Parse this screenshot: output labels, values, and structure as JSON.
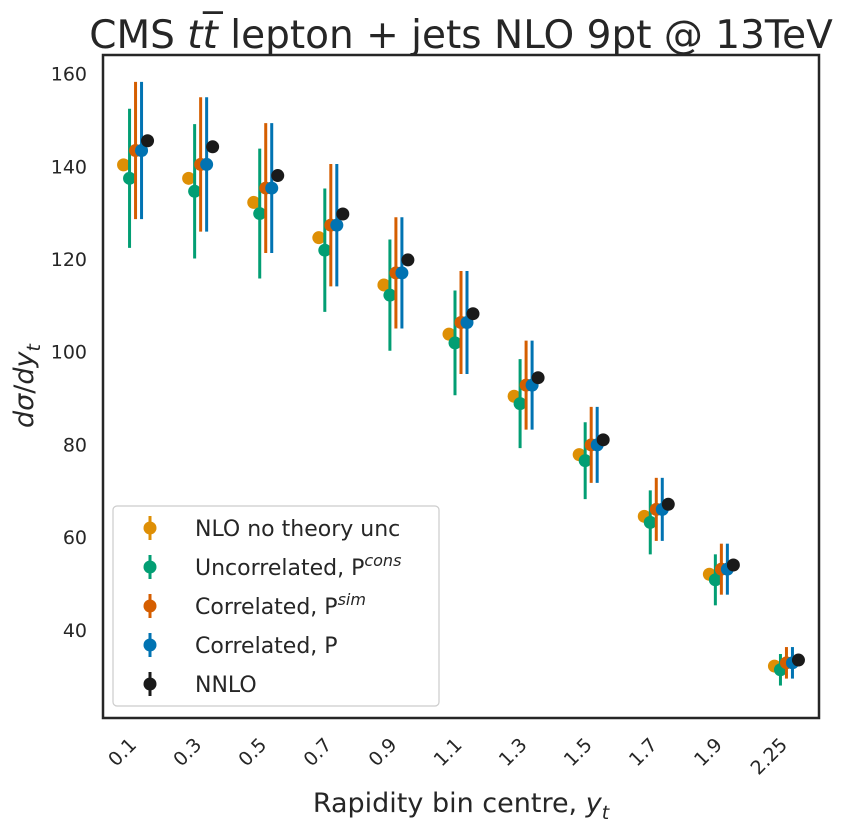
{
  "chart_data": {
    "type": "scatter",
    "title_prefix": "CMS ",
    "title_math": "tt̅",
    "title_suffix": " lepton + jets NLO 9pt @ 13TeV",
    "xlabel_text": "Rapidity bin centre, ",
    "xlabel_var": "y",
    "xlabel_sub": "t",
    "ylabel_d1": "d",
    "ylabel_sigma": "σ",
    "ylabel_slash": "/",
    "ylabel_d2": "dy",
    "ylabel_sub": "t",
    "categories": [
      "0.1",
      "0.3",
      "0.5",
      "0.7",
      "0.9",
      "1.1",
      "1.3",
      "1.5",
      "1.7",
      "1.9",
      "2.25"
    ],
    "ylim": [
      21,
      164
    ],
    "yticks": [
      40,
      60,
      80,
      100,
      120,
      140,
      160
    ],
    "grid": false,
    "legend_position": "lower-left",
    "series": [
      {
        "legend_main": "NLO no theory unc",
        "legend_sup": "",
        "color": "#de8f05",
        "values": [
          140.3,
          137.4,
          132.2,
          124.6,
          114.4,
          103.8,
          90.4,
          77.8,
          64.5,
          52.0,
          32.2
        ],
        "err": [
          0,
          0,
          0,
          0,
          0,
          0,
          0,
          0,
          0,
          0,
          0
        ]
      },
      {
        "legend_main": "Uncorrelated, P",
        "legend_sup": "cons",
        "color": "#029e73",
        "values": [
          137.4,
          134.6,
          129.8,
          121.9,
          112.2,
          101.9,
          88.8,
          76.5,
          63.2,
          50.8,
          31.4
        ],
        "err": [
          15.0,
          14.5,
          14.0,
          13.3,
          12.0,
          11.3,
          9.6,
          8.3,
          6.9,
          5.5,
          3.4
        ]
      },
      {
        "legend_main": "Correlated, P",
        "legend_sup": "sim",
        "color": "#d55e00",
        "values": [
          143.4,
          140.4,
          135.3,
          127.3,
          117.0,
          106.3,
          92.8,
          79.9,
          66.0,
          53.1,
          32.9
        ],
        "err": [
          14.8,
          14.5,
          14.0,
          13.2,
          12.0,
          11.1,
          9.6,
          8.2,
          6.8,
          5.5,
          3.4
        ]
      },
      {
        "legend_main": "Correlated, P",
        "legend_sup": "",
        "color": "#0173b2",
        "values": [
          143.4,
          140.4,
          135.3,
          127.3,
          117.0,
          106.3,
          92.8,
          79.9,
          66.0,
          53.1,
          32.9
        ],
        "err": [
          14.8,
          14.5,
          14.0,
          13.2,
          12.0,
          11.1,
          9.6,
          8.2,
          6.8,
          5.5,
          3.4
        ]
      },
      {
        "legend_main": "NNLO",
        "legend_sup": "",
        "color": "#1a1a1a",
        "values": [
          145.5,
          144.2,
          138.0,
          129.7,
          119.8,
          108.2,
          94.4,
          81.0,
          67.1,
          54.0,
          33.5
        ],
        "err": [
          0,
          0,
          0,
          0,
          0,
          0,
          0,
          0,
          0,
          0,
          0
        ]
      }
    ]
  }
}
